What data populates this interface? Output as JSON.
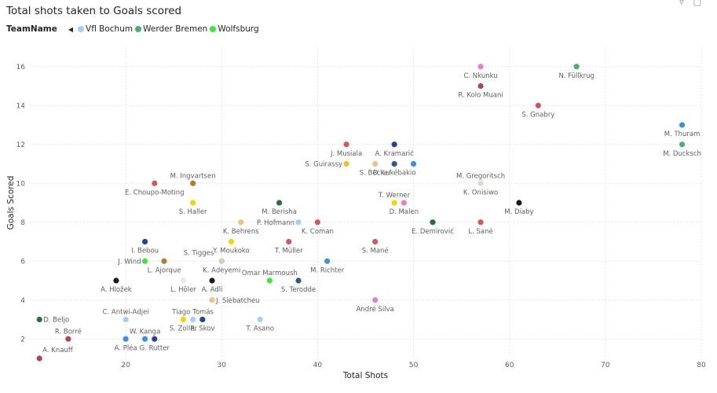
{
  "title": "Total shots taken to Goals scored",
  "legend": {
    "title": "TeamName",
    "items": [
      {
        "name": "Vfl Bochum",
        "color": "#a6cdf2"
      },
      {
        "name": "Werder Bremen",
        "color": "#4caf73"
      },
      {
        "name": "Wolfsburg",
        "color": "#3de63d"
      }
    ]
  },
  "chart_data": {
    "type": "scatter",
    "title": "Total shots taken to Goals scored",
    "xlabel": "Total Shots",
    "ylabel": "Goals Scored",
    "xlim": [
      10,
      80
    ],
    "ylim": [
      1,
      17
    ],
    "xticks": [
      20,
      30,
      40,
      50,
      60,
      70,
      80
    ],
    "yticks": [
      2,
      4,
      6,
      8,
      10,
      12,
      14,
      16
    ],
    "grid": true,
    "points": [
      {
        "label": "C. Nkunku",
        "x": 57,
        "y": 16,
        "color": "#e67fc4",
        "lp": "below"
      },
      {
        "label": "N. Füllkrug",
        "x": 67,
        "y": 16,
        "color": "#4caf73",
        "lp": "below"
      },
      {
        "label": "R. Kolo Muani",
        "x": 57,
        "y": 15,
        "color": "#b24450",
        "lp": "below"
      },
      {
        "label": "S. Gnabry",
        "x": 63,
        "y": 14,
        "color": "#d45757",
        "lp": "below"
      },
      {
        "label": "M. Thuram",
        "x": 78,
        "y": 13,
        "color": "#3d8ee6",
        "lp": "below"
      },
      {
        "label": "M. Ducksch",
        "x": 78,
        "y": 12,
        "color": "#4caf73",
        "lp": "below"
      },
      {
        "label": "J. Musiala",
        "x": 43,
        "y": 12,
        "color": "#d45757",
        "lp": "below"
      },
      {
        "label": "A. Kramarić",
        "x": 48,
        "y": 12,
        "color": "#25409e",
        "lp": "below"
      },
      {
        "label": "S. Guirassy",
        "x": 43,
        "y": 11,
        "color": "#e6c23a",
        "lp": "left"
      },
      {
        "label": "S. Becker",
        "x": 46,
        "y": 11,
        "color": "#f0c08a",
        "lp": "below"
      },
      {
        "label": "D. Lukébakio",
        "x": 48,
        "y": 11,
        "color": "#2a5a8c",
        "lp": "below"
      },
      {
        "label": "",
        "x": 50,
        "y": 11,
        "color": "#3d8ee6",
        "lp": "none"
      },
      {
        "label": "M. Ingvartsen",
        "x": 27,
        "y": 10,
        "color": "#b07d2a",
        "lp": "above"
      },
      {
        "label": "E. Choupo-Moting",
        "x": 23,
        "y": 10,
        "color": "#d45757",
        "lp": "below"
      },
      {
        "label": "M. Gregoritsch",
        "x": 57,
        "y": 10,
        "color": "#dcdccc",
        "lp": "above"
      },
      {
        "label": "K. Onisiwo",
        "x": 57,
        "y": 10,
        "color": "#dcdccc",
        "lp": "below"
      },
      {
        "label": "S. Haller",
        "x": 27,
        "y": 9,
        "color": "#f2d600",
        "lp": "below"
      },
      {
        "label": "T. Werner",
        "x": 48,
        "y": 9,
        "color": "#f2d600",
        "lp": "above"
      },
      {
        "label": "D. Malen",
        "x": 49,
        "y": 9,
        "color": "#e67fc4",
        "lp": "below"
      },
      {
        "label": "M. Diaby",
        "x": 61,
        "y": 9,
        "color": "#1a1a1a",
        "lp": "below"
      },
      {
        "label": "M. Berisha",
        "x": 36,
        "y": 9,
        "color": "#2e6b3e",
        "lp": "below"
      },
      {
        "label": "K. Behrens",
        "x": 32,
        "y": 8,
        "color": "#f0c08a",
        "lp": "below"
      },
      {
        "label": "P. Hofmann",
        "x": 38,
        "y": 8,
        "color": "#a6cdf2",
        "lp": "left"
      },
      {
        "label": "K. Coman",
        "x": 40,
        "y": 8,
        "color": "#d45757",
        "lp": "below"
      },
      {
        "label": "E. Demirović",
        "x": 52,
        "y": 8,
        "color": "#2e6b3e",
        "lp": "below"
      },
      {
        "label": "L. Sané",
        "x": 57,
        "y": 8,
        "color": "#d45757",
        "lp": "below"
      },
      {
        "label": "I. Bebou",
        "x": 22,
        "y": 7,
        "color": "#25409e",
        "lp": "below"
      },
      {
        "label": "Y. Moukoko",
        "x": 31,
        "y": 7,
        "color": "#f2d600",
        "lp": "below"
      },
      {
        "label": "T. Müller",
        "x": 37,
        "y": 7,
        "color": "#d45757",
        "lp": "below"
      },
      {
        "label": "S. Mané",
        "x": 46,
        "y": 7,
        "color": "#d45757",
        "lp": "below"
      },
      {
        "label": "J. Wind",
        "x": 22,
        "y": 6,
        "color": "#3de63d",
        "lp": "left"
      },
      {
        "label": "L. Ajorque",
        "x": 24,
        "y": 6,
        "color": "#b07d2a",
        "lp": "below"
      },
      {
        "label": "S. Tigges",
        "x": 30,
        "y": 6,
        "color": "#d0d0c0",
        "lp": "aboveleft"
      },
      {
        "label": "K. Adeyemi",
        "x": 30,
        "y": 6,
        "color": "#d0d0c0",
        "lp": "below"
      },
      {
        "label": "M. Richter",
        "x": 41,
        "y": 6,
        "color": "#3d8ee6",
        "lp": "below"
      },
      {
        "label": "A. Hložek",
        "x": 19,
        "y": 5,
        "color": "#1a1a1a",
        "lp": "below"
      },
      {
        "label": "L. Höler",
        "x": 26,
        "y": 5,
        "color": "#e8e8e8",
        "lp": "below"
      },
      {
        "label": "A. Adli",
        "x": 29,
        "y": 5,
        "color": "#1a1a1a",
        "lp": "below"
      },
      {
        "label": "Omar Marmoush",
        "x": 35,
        "y": 5,
        "color": "#3de63d",
        "lp": "above"
      },
      {
        "label": "S. Terodde",
        "x": 38,
        "y": 5,
        "color": "#2a5a8c",
        "lp": "below"
      },
      {
        "label": "J. Siebatcheu",
        "x": 29,
        "y": 4,
        "color": "#f0c08a",
        "lp": "right"
      },
      {
        "label": "André Silva",
        "x": 46,
        "y": 4,
        "color": "#e67fc4",
        "lp": "below"
      },
      {
        "label": "C. Antwi-Adjei",
        "x": 20,
        "y": 3,
        "color": "#a6cdf2",
        "lp": "above"
      },
      {
        "label": "Tiago Tomás",
        "x": 27,
        "y": 3,
        "color": "#a6cdf2",
        "lp": "above"
      },
      {
        "label": "S. Zoller",
        "x": 26,
        "y": 3,
        "color": "#f2d600",
        "lp": "below"
      },
      {
        "label": "R. Skov",
        "x": 28,
        "y": 3,
        "color": "#25409e",
        "lp": "below"
      },
      {
        "label": "T. Asano",
        "x": 34,
        "y": 3,
        "color": "#a6cdf2",
        "lp": "below"
      },
      {
        "label": "D. Beljo",
        "x": 11,
        "y": 3,
        "color": "#2e6b3e",
        "lp": "right"
      },
      {
        "label": "R. Borré",
        "x": 14,
        "y": 2,
        "color": "#b24450",
        "lp": "above"
      },
      {
        "label": "W. Kanga",
        "x": 22,
        "y": 2,
        "color": "#3d8ee6",
        "lp": "above"
      },
      {
        "label": "A. Pléa",
        "x": 20,
        "y": 2,
        "color": "#3d8ee6",
        "lp": "below"
      },
      {
        "label": "G. Rutter",
        "x": 23,
        "y": 2,
        "color": "#25409e",
        "lp": "below"
      },
      {
        "label": "A. Knauff",
        "x": 11,
        "y": 1,
        "color": "#b24450",
        "lp": "aboveright"
      }
    ]
  }
}
